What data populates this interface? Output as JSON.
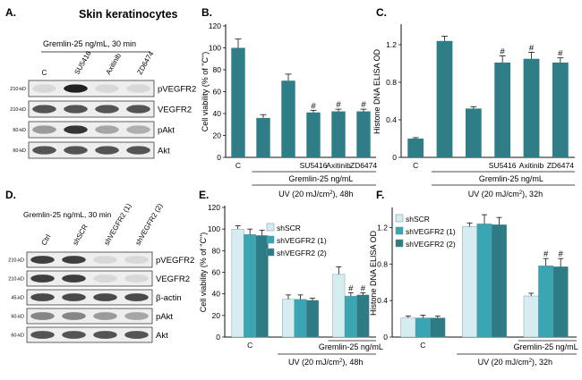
{
  "panel_letters": [
    "A.",
    "B.",
    "C.",
    "D.",
    "E.",
    "F."
  ],
  "blot_a": {
    "title": "Skin keratinocytes",
    "treatment": "Gremlin-25 ng/mL, 30 min",
    "lanes": [
      "C",
      "SU5416",
      "Axitinib",
      "ZD6474"
    ],
    "rows": [
      {
        "kd": "210-kD",
        "label": "pVEGFR2",
        "bands": [
          0.05,
          0.95,
          0.05,
          0.05
        ]
      },
      {
        "kd": "210-kD",
        "label": "VEGFR2",
        "bands": [
          0.7,
          0.7,
          0.7,
          0.7
        ]
      },
      {
        "kd": "60-kD",
        "label": "pAkt",
        "bands": [
          0.35,
          0.85,
          0.3,
          0.25
        ]
      },
      {
        "kd": "60-kD",
        "label": "Akt",
        "bands": [
          0.7,
          0.7,
          0.7,
          0.7
        ]
      }
    ]
  },
  "blot_d": {
    "treatment": "Gremlin-25 ng/mL, 30 min",
    "lanes": [
      "Ctrl",
      "shSCR",
      "shVEGFR2 (1)",
      "shVEGFR2 (2)"
    ],
    "rows": [
      {
        "kd": "210-kD",
        "label": "pVEGFR2",
        "bands": [
          0.8,
          0.8,
          0.05,
          0.05
        ]
      },
      {
        "kd": "210-kD",
        "label": "VEGFR2",
        "bands": [
          0.8,
          0.8,
          0.05,
          0.05
        ]
      },
      {
        "kd": "45-kD",
        "label": "β-actin",
        "bands": [
          0.75,
          0.75,
          0.75,
          0.75
        ]
      },
      {
        "kd": "60-kD",
        "label": "pAkt",
        "bands": [
          0.45,
          0.45,
          0.35,
          0.3
        ]
      },
      {
        "kd": "60-kD",
        "label": "Akt",
        "bands": [
          0.7,
          0.7,
          0.7,
          0.7
        ]
      }
    ]
  },
  "chart_data": [
    {
      "id": "B",
      "type": "bar",
      "ylabel": "Cell viability (% of \"C\")",
      "ylim": [
        0,
        120
      ],
      "yticks": [
        0,
        20,
        40,
        60,
        80,
        100,
        120
      ],
      "categories": [
        "C",
        "",
        "",
        "SU5416",
        "Axitinib",
        "ZD6474"
      ],
      "values": [
        100,
        36,
        70,
        41,
        42,
        42
      ],
      "errors": [
        8,
        3,
        6,
        2,
        2,
        2
      ],
      "sig": [
        "",
        "",
        "",
        "#",
        "#",
        "#"
      ],
      "group_label": "Gremlin-25 ng/mL",
      "condition_label": "UV (20 mJ/cm",
      "condition_suffix": "), 48h",
      "color": "#2f7d86"
    },
    {
      "id": "C",
      "type": "bar",
      "ylabel": "Histone DNA ELISA OD",
      "ylim": [
        0,
        1.4
      ],
      "yticks": [
        0,
        0.4,
        0.8,
        1.2
      ],
      "categories": [
        "C",
        "",
        "",
        "SU5416",
        "Axitinib",
        "ZD6474"
      ],
      "values": [
        0.2,
        1.24,
        0.52,
        1.01,
        1.05,
        1.01
      ],
      "errors": [
        0.01,
        0.05,
        0.02,
        0.07,
        0.07,
        0.05
      ],
      "sig": [
        "",
        "",
        "",
        "#",
        "#",
        "#"
      ],
      "group_label": "Gremlin-25 ng/mL",
      "condition_label": "UV (20 mJ/cm",
      "condition_suffix": "), 32h",
      "color": "#2f7d86"
    },
    {
      "id": "E",
      "type": "bar",
      "ylabel": "Cell viability (% of \"C\")",
      "ylim": [
        0,
        120
      ],
      "yticks": [
        0,
        20,
        40,
        60,
        80,
        100,
        120
      ],
      "categories": [
        "C",
        "",
        "Gremlin-25 ng/mL"
      ],
      "series": [
        {
          "name": "shSCR",
          "color": "#d5edf1",
          "values": [
            100,
            35,
            58
          ],
          "errors": [
            3,
            4,
            7
          ],
          "sig": [
            "",
            "",
            ""
          ]
        },
        {
          "name": "shVEGFR2 (1)",
          "color": "#3aa6b4",
          "values": [
            95,
            35,
            38
          ],
          "errors": [
            5,
            4,
            3
          ],
          "sig": [
            "",
            "",
            "#"
          ]
        },
        {
          "name": "shVEGFR2 (2)",
          "color": "#2c7b85",
          "values": [
            94,
            34,
            39
          ],
          "errors": [
            5,
            2,
            2
          ],
          "sig": [
            "",
            "",
            "#"
          ]
        }
      ],
      "condition_label": "UV (20 mJ/cm",
      "condition_suffix": "), 48h"
    },
    {
      "id": "F",
      "type": "bar",
      "ylabel": "Histone DNA ELISA OD",
      "ylim": [
        0,
        1.4
      ],
      "yticks": [
        0,
        0.4,
        0.8,
        1.2
      ],
      "categories": [
        "C",
        "",
        "Gremlin-25 ng/mL"
      ],
      "series": [
        {
          "name": "shSCR",
          "color": "#d5edf1",
          "values": [
            0.21,
            1.21,
            0.45
          ],
          "errors": [
            0.02,
            0.04,
            0.03
          ],
          "sig": [
            "",
            "",
            ""
          ]
        },
        {
          "name": "shVEGFR2 (1)",
          "color": "#3aa6b4",
          "values": [
            0.21,
            1.24,
            0.78
          ],
          "errors": [
            0.03,
            0.1,
            0.08
          ],
          "sig": [
            "",
            "",
            "#"
          ]
        },
        {
          "name": "shVEGFR2 (2)",
          "color": "#2c7b85",
          "values": [
            0.21,
            1.23,
            0.77
          ],
          "errors": [
            0.02,
            0.08,
            0.09
          ],
          "sig": [
            "",
            "",
            "#"
          ]
        }
      ],
      "condition_label": "UV (20 mJ/cm",
      "condition_suffix": "), 32h"
    }
  ]
}
